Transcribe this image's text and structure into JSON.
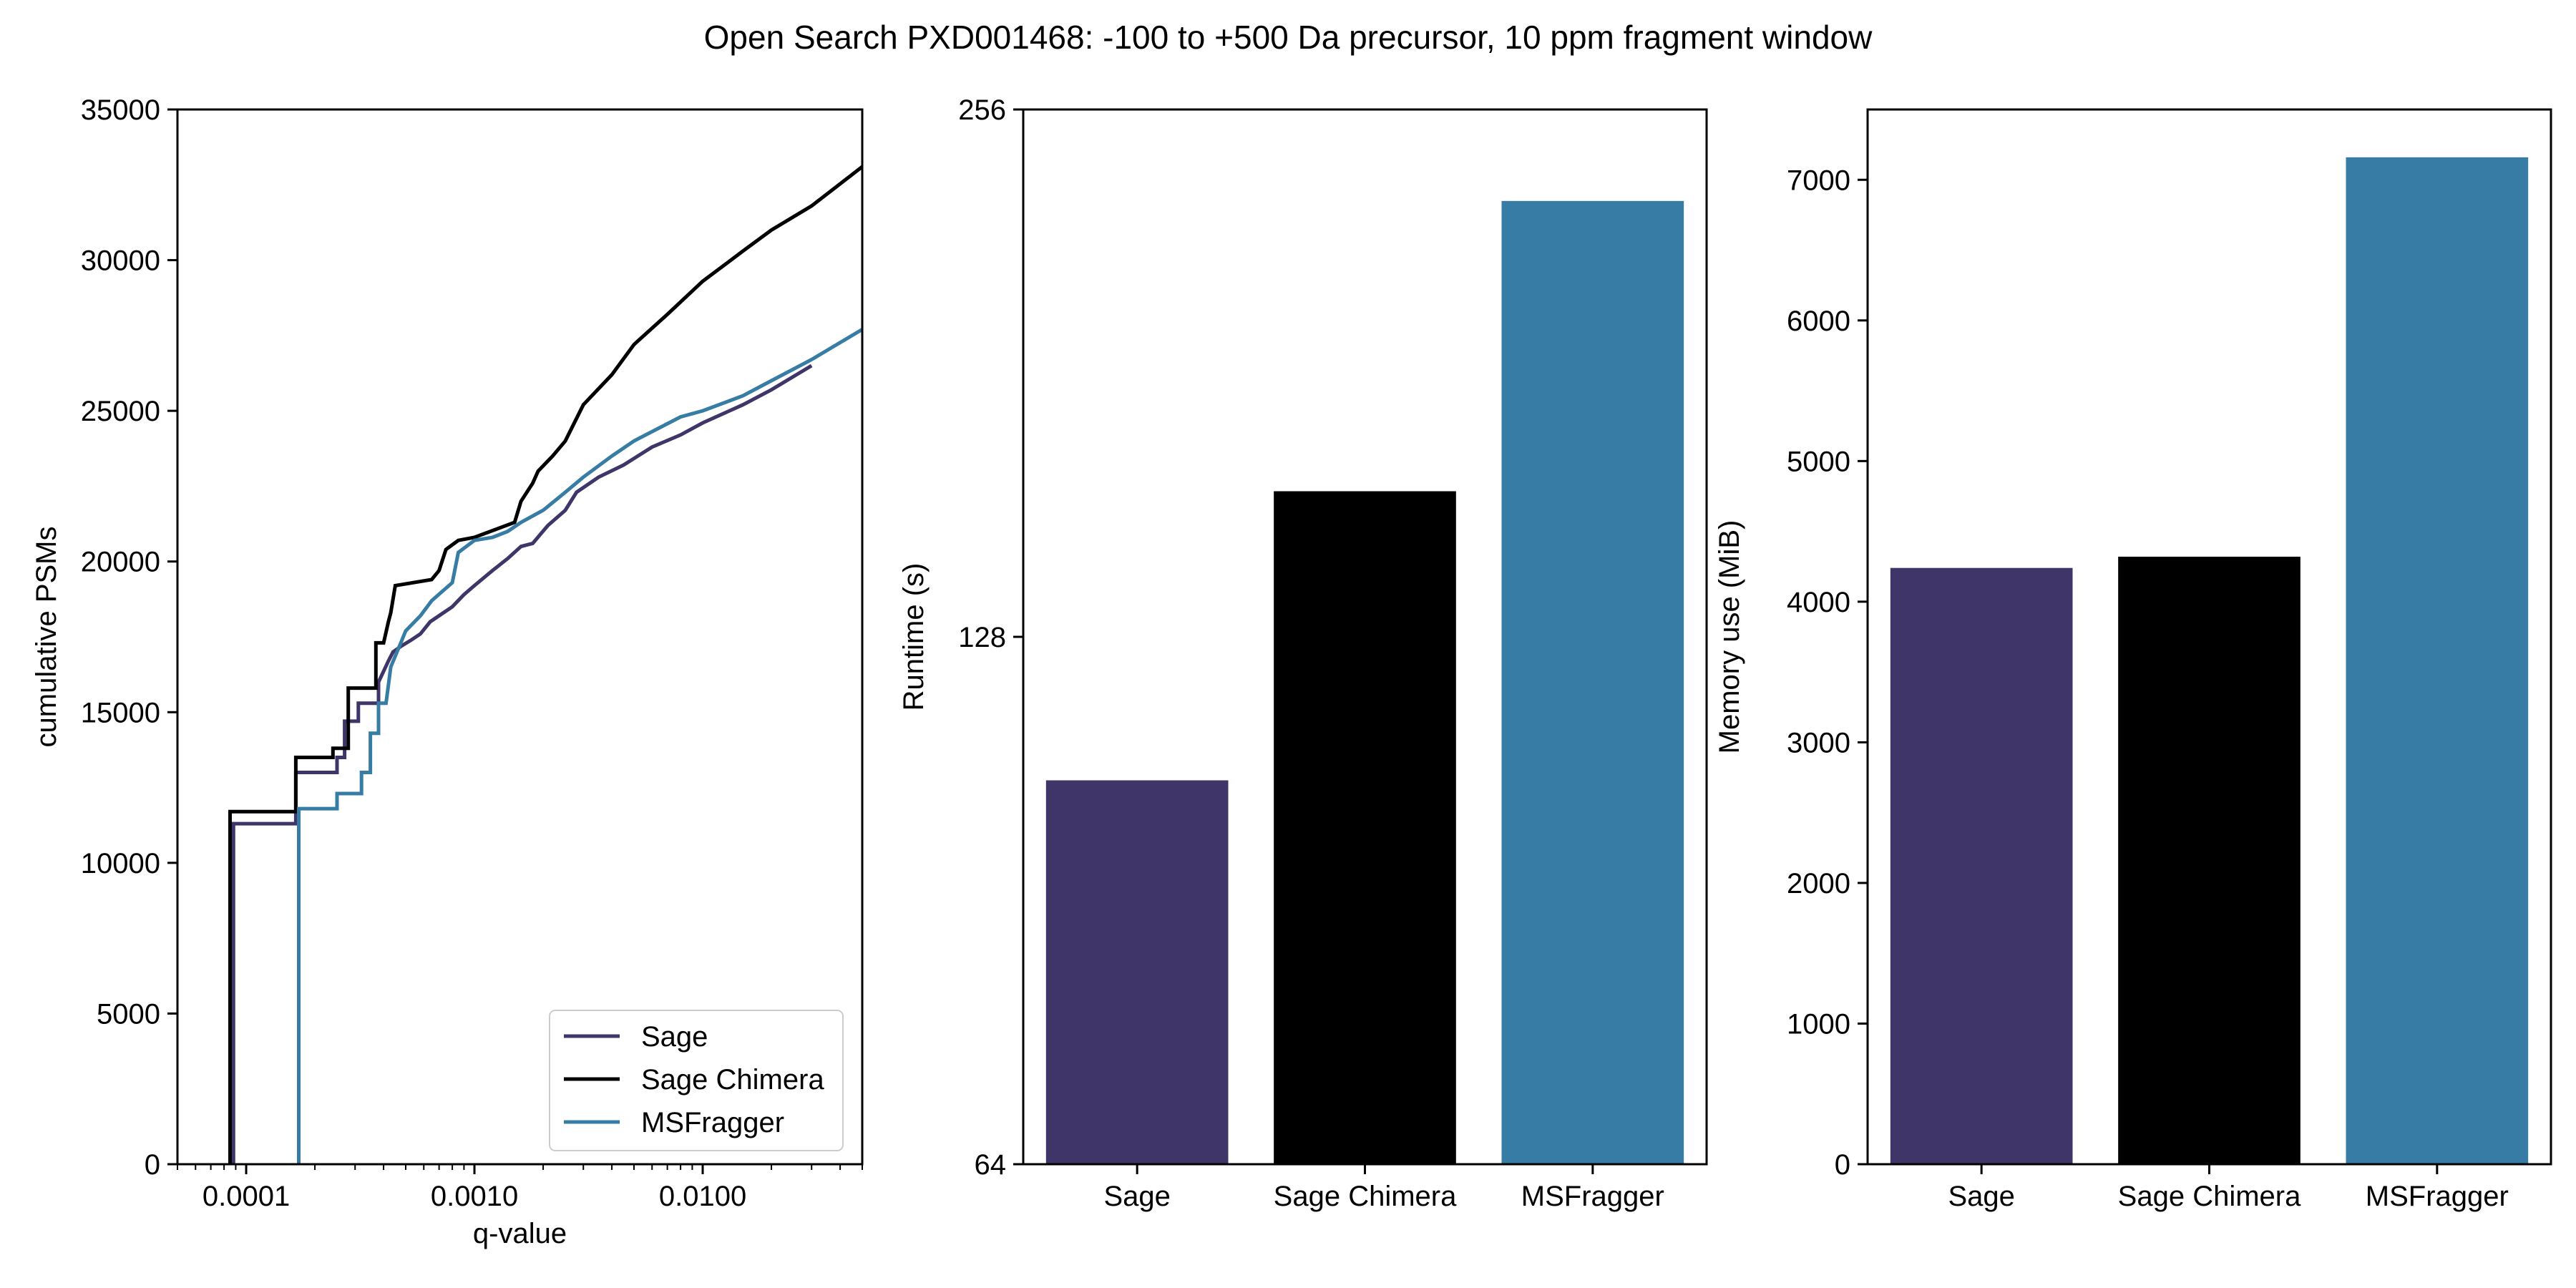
{
  "figure": {
    "title": "Open Search PXD001468: -100 to +500 Da precursor, 10 ppm fragment window"
  },
  "colors": {
    "Sage": "#3f3569",
    "Sage Chimera": "#000000",
    "MSFragger": "#377ca4"
  },
  "chart_data": [
    {
      "type": "line",
      "xlabel": "q-value",
      "ylabel": "cumulative PSMs",
      "xscale": "log",
      "xlim": [
        5e-05,
        0.05
      ],
      "ylim": [
        0,
        35000
      ],
      "xticks": [
        0.0001,
        0.001,
        0.01
      ],
      "xtick_labels": [
        "0.0001",
        "0.0010",
        "0.0100"
      ],
      "yticks": [
        0,
        5000,
        10000,
        15000,
        20000,
        25000,
        30000,
        35000
      ],
      "ytick_labels": [
        "0",
        "5000",
        "10000",
        "15000",
        "20000",
        "25000",
        "30000",
        "35000"
      ],
      "legend_position": "lower-right",
      "grid": false,
      "series": [
        {
          "name": "Sage",
          "x": [
            8.8e-05,
            8.8e-05,
            0.000165,
            0.000165,
            0.00025,
            0.00025,
            0.00027,
            0.00027,
            0.00031,
            0.00031,
            0.00038,
            0.00038,
            0.00042,
            0.00044,
            0.00048,
            0.00053,
            0.00058,
            0.00064,
            0.0007,
            0.0008,
            0.0009,
            0.001,
            0.0012,
            0.0014,
            0.0016,
            0.0018,
            0.0021,
            0.0025,
            0.0028,
            0.0035,
            0.0045,
            0.006,
            0.008,
            0.01,
            0.015,
            0.02,
            0.03
          ],
          "y": [
            0,
            11300,
            11300,
            13000,
            13000,
            13500,
            13500,
            14700,
            14700,
            15300,
            15300,
            16000,
            16700,
            17000,
            17200,
            17400,
            17600,
            18000,
            18200,
            18500,
            18900,
            19200,
            19700,
            20100,
            20500,
            20600,
            21200,
            21700,
            22300,
            22800,
            23200,
            23800,
            24200,
            24600,
            25200,
            25700,
            26500
          ]
        },
        {
          "name": "Sage Chimera",
          "x": [
            8.5e-05,
            8.5e-05,
            0.000165,
            0.000165,
            0.00024,
            0.00024,
            0.00028,
            0.00028,
            0.00037,
            0.00037,
            0.0004,
            0.00042,
            0.00043,
            0.00045,
            0.00065,
            0.0007,
            0.00075,
            0.00085,
            0.001,
            0.0015,
            0.0016,
            0.0018,
            0.0019,
            0.0022,
            0.0025,
            0.003,
            0.004,
            0.005,
            0.007,
            0.01,
            0.015,
            0.02,
            0.03,
            0.05
          ],
          "y": [
            0,
            11700,
            11700,
            13500,
            13500,
            13800,
            13800,
            15800,
            15800,
            17300,
            17300,
            18000,
            18300,
            19200,
            19400,
            19700,
            20400,
            20700,
            20800,
            21300,
            22000,
            22600,
            23000,
            23500,
            24000,
            25200,
            26200,
            27200,
            28200,
            29300,
            30300,
            31000,
            31800,
            33100
          ]
        },
        {
          "name": "MSFragger",
          "x": [
            0.00017,
            0.00017,
            0.00025,
            0.00025,
            0.00032,
            0.00032,
            0.00035,
            0.00035,
            0.00038,
            0.00038,
            0.00041,
            0.00043,
            0.00047,
            0.0005,
            0.00058,
            0.00065,
            0.0008,
            0.00085,
            0.001,
            0.0012,
            0.0014,
            0.0016,
            0.002,
            0.0025,
            0.003,
            0.004,
            0.005,
            0.008,
            0.01,
            0.015,
            0.02,
            0.03,
            0.05
          ],
          "y": [
            0,
            11800,
            11800,
            12300,
            12300,
            13000,
            13000,
            14300,
            14300,
            15300,
            15300,
            16500,
            17200,
            17700,
            18200,
            18700,
            19300,
            20300,
            20700,
            20800,
            21000,
            21300,
            21700,
            22300,
            22800,
            23500,
            24000,
            24800,
            25000,
            25500,
            26000,
            26700,
            27700
          ]
        }
      ]
    },
    {
      "type": "bar",
      "categories": [
        "Sage",
        "Sage Chimera",
        "MSFragger"
      ],
      "values": [
        106,
        155,
        227
      ],
      "ylabel": "Runtime (s)",
      "xlabel": "",
      "yscale": "log2",
      "ylim": [
        64,
        256
      ],
      "yticks": [
        64,
        128,
        256
      ],
      "ytick_labels": [
        "64",
        "128",
        "256"
      ],
      "grid": false
    },
    {
      "type": "bar",
      "categories": [
        "Sage",
        "Sage Chimera",
        "MSFragger"
      ],
      "values": [
        4240,
        4320,
        7160
      ],
      "ylabel": "Memory use (MiB)",
      "xlabel": "",
      "ylim": [
        0,
        7500
      ],
      "yticks": [
        0,
        1000,
        2000,
        3000,
        4000,
        5000,
        6000,
        7000
      ],
      "ytick_labels": [
        "0",
        "1000",
        "2000",
        "3000",
        "4000",
        "5000",
        "6000",
        "7000"
      ],
      "grid": false
    }
  ]
}
